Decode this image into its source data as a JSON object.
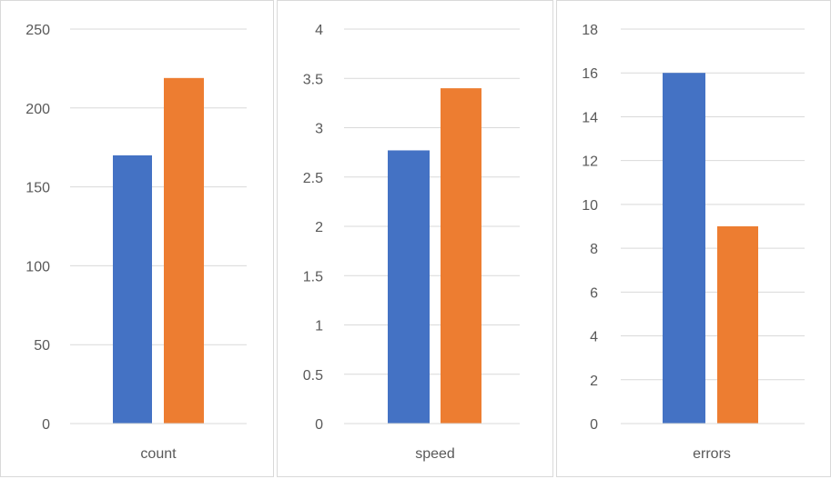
{
  "colors": {
    "series_a": "#4472c4",
    "series_b": "#ed7d31",
    "grid": "#d9d9d9",
    "text": "#595959"
  },
  "chart_data": [
    {
      "type": "bar",
      "categories": [
        "count"
      ],
      "series": [
        {
          "values": [
            170
          ]
        },
        {
          "values": [
            219
          ]
        }
      ],
      "ylim": [
        0,
        250
      ],
      "yticks": [
        0,
        50,
        100,
        150,
        200,
        250
      ],
      "grid": true
    },
    {
      "type": "bar",
      "categories": [
        "speed"
      ],
      "series": [
        {
          "values": [
            2.77
          ]
        },
        {
          "values": [
            3.4
          ]
        }
      ],
      "ylim": [
        0,
        4
      ],
      "yticks": [
        0,
        0.5,
        1,
        1.5,
        2,
        2.5,
        3,
        3.5,
        4
      ],
      "grid": true
    },
    {
      "type": "bar",
      "categories": [
        "errors"
      ],
      "series": [
        {
          "values": [
            16
          ]
        },
        {
          "values": [
            9
          ]
        }
      ],
      "ylim": [
        0,
        18
      ],
      "yticks": [
        0,
        2,
        4,
        6,
        8,
        10,
        12,
        14,
        16,
        18
      ],
      "grid": true
    }
  ]
}
